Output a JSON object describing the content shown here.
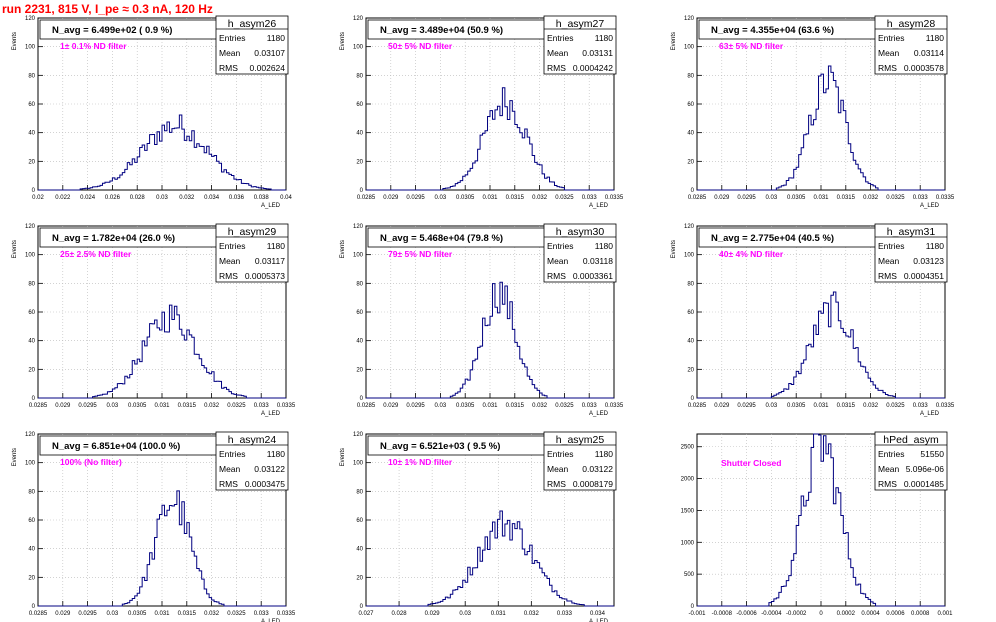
{
  "run_title": "run 2231,   815 V, I_pe ≈ 0.3 nA, 120 Hz",
  "colors": {
    "hist": "#000080",
    "run_title": "#ff0000",
    "annotation": "#ff00ff",
    "grid": "#b8b8b8"
  },
  "chart_data": [
    {
      "type": "histogram",
      "name": "h_asym26",
      "avg_label": "N_avg = 6.499e+02 ( 0.9 %)",
      "annotation": "1± 0.1% ND filter",
      "stats": {
        "entries_label": "Entries",
        "entries": "1180",
        "mean_label": "Mean",
        "mean": "0.03107",
        "rms_label": "RMS",
        "rms": "0.002624"
      },
      "ylabel": "Events",
      "xlabel": "A_LED",
      "xlim": [
        0.02,
        0.04
      ],
      "ylim": [
        0,
        120
      ],
      "xticks": [
        "0.02",
        "0.022",
        "0.024",
        "0.026",
        "0.028",
        "0.03",
        "0.032",
        "0.034",
        "0.036",
        "0.038",
        "0.04"
      ],
      "yticks": [
        "0",
        "20",
        "40",
        "60",
        "80",
        "100",
        "120"
      ],
      "grid": true,
      "stats_box": "top-right",
      "mean": 0.03107,
      "rms": 0.002624,
      "peak": 45
    },
    {
      "type": "histogram",
      "name": "h_asym27",
      "avg_label": "N_avg = 3.489e+04 (50.9 %)",
      "annotation": "50± 5% ND filter",
      "stats": {
        "entries_label": "Entries",
        "entries": "1180",
        "mean_label": "Mean",
        "mean": "0.03131",
        "rms_label": "RMS",
        "rms": "0.0004242"
      },
      "ylabel": "Events",
      "xlabel": "A_LED",
      "xlim": [
        0.0285,
        0.0335
      ],
      "ylim": [
        0,
        120
      ],
      "xticks": [
        "0.0285",
        "0.029",
        "0.0295",
        "0.03",
        "0.0305",
        "0.031",
        "0.0315",
        "0.032",
        "0.0325",
        "0.033",
        "0.0335"
      ],
      "yticks": [
        "0",
        "20",
        "40",
        "60",
        "80",
        "100",
        "120"
      ],
      "grid": true,
      "stats_box": "top-right",
      "mean": 0.03131,
      "rms": 0.0004242,
      "peak": 62
    },
    {
      "type": "histogram",
      "name": "h_asym28",
      "avg_label": "N_avg = 4.355e+04 (63.6 %)",
      "annotation": "63± 5% ND filter",
      "stats": {
        "entries_label": "Entries",
        "entries": "1180",
        "mean_label": "Mean",
        "mean": "0.03114",
        "rms_label": "RMS",
        "rms": "0.0003578"
      },
      "ylabel": "Events",
      "xlabel": "A_LED",
      "xlim": [
        0.0285,
        0.0335
      ],
      "ylim": [
        0,
        120
      ],
      "xticks": [
        "0.0285",
        "0.029",
        "0.0295",
        "0.03",
        "0.0305",
        "0.031",
        "0.0315",
        "0.032",
        "0.0325",
        "0.033",
        "0.0335"
      ],
      "yticks": [
        "0",
        "20",
        "40",
        "60",
        "80",
        "100",
        "120"
      ],
      "grid": true,
      "stats_box": "top-right",
      "mean": 0.03114,
      "rms": 0.0003578,
      "peak": 76
    },
    {
      "type": "histogram",
      "name": "h_asym29",
      "avg_label": "N_avg = 1.782e+04 (26.0 %)",
      "annotation": "25± 2.5% ND filter",
      "stats": {
        "entries_label": "Entries",
        "entries": "1180",
        "mean_label": "Mean",
        "mean": "0.03117",
        "rms_label": "RMS",
        "rms": "0.0005373"
      },
      "ylabel": "Events",
      "xlabel": "A_LED",
      "xlim": [
        0.0285,
        0.0335
      ],
      "ylim": [
        0,
        120
      ],
      "xticks": [
        "0.0285",
        "0.029",
        "0.0295",
        "0.03",
        "0.0305",
        "0.031",
        "0.0315",
        "0.032",
        "0.0325",
        "0.033",
        "0.0335"
      ],
      "yticks": [
        "0",
        "20",
        "40",
        "60",
        "80",
        "100",
        "120"
      ],
      "grid": true,
      "stats_box": "top-right",
      "mean": 0.03117,
      "rms": 0.0005373,
      "peak": 57
    },
    {
      "type": "histogram",
      "name": "h_asym30",
      "avg_label": "N_avg = 5.468e+04 (79.8 %)",
      "annotation": "79± 5% ND filter",
      "stats": {
        "entries_label": "Entries",
        "entries": "1180",
        "mean_label": "Mean",
        "mean": "0.03118",
        "rms_label": "RMS",
        "rms": "0.0003361"
      },
      "ylabel": "Events",
      "xlabel": "A_LED",
      "xlim": [
        0.0285,
        0.0335
      ],
      "ylim": [
        0,
        120
      ],
      "xticks": [
        "0.0285",
        "0.029",
        "0.0295",
        "0.03",
        "0.0305",
        "0.031",
        "0.0315",
        "0.032",
        "0.0325",
        "0.033",
        "0.0335"
      ],
      "yticks": [
        "0",
        "20",
        "40",
        "60",
        "80",
        "100",
        "120"
      ],
      "grid": true,
      "stats_box": "top-right",
      "mean": 0.03118,
      "rms": 0.0003361,
      "peak": 74
    },
    {
      "type": "histogram",
      "name": "h_asym31",
      "avg_label": "N_avg = 2.775e+04 (40.5 %)",
      "annotation": "40± 4% ND filter",
      "stats": {
        "entries_label": "Entries",
        "entries": "1180",
        "mean_label": "Mean",
        "mean": "0.03123",
        "rms_label": "RMS",
        "rms": "0.0004351"
      },
      "ylabel": "Events",
      "xlabel": "A_LED",
      "xlim": [
        0.0285,
        0.0335
      ],
      "ylim": [
        0,
        120
      ],
      "xticks": [
        "0.0285",
        "0.029",
        "0.0295",
        "0.03",
        "0.0305",
        "0.031",
        "0.0315",
        "0.032",
        "0.0325",
        "0.033",
        "0.0335"
      ],
      "yticks": [
        "0",
        "20",
        "40",
        "60",
        "80",
        "100",
        "120"
      ],
      "grid": true,
      "stats_box": "top-right",
      "mean": 0.03123,
      "rms": 0.0004351,
      "peak": 62
    },
    {
      "type": "histogram",
      "name": "h_asym24",
      "avg_label": "N_avg = 6.851e+04 (100.0 %)",
      "annotation": "100% (No filter)",
      "stats": {
        "entries_label": "Entries",
        "entries": "1180",
        "mean_label": "Mean",
        "mean": "0.03122",
        "rms_label": "RMS",
        "rms": "0.0003475"
      },
      "ylabel": "Events",
      "xlabel": "A_LED",
      "xlim": [
        0.0285,
        0.0335
      ],
      "ylim": [
        0,
        120
      ],
      "xticks": [
        "0.0285",
        "0.029",
        "0.0295",
        "0.03",
        "0.0305",
        "0.031",
        "0.0315",
        "0.032",
        "0.0325",
        "0.033",
        "0.0335"
      ],
      "yticks": [
        "0",
        "20",
        "40",
        "60",
        "80",
        "100",
        "120"
      ],
      "grid": true,
      "stats_box": "top-right",
      "mean": 0.03122,
      "rms": 0.0003475,
      "peak": 74
    },
    {
      "type": "histogram",
      "name": "h_asym25",
      "avg_label": "N_avg = 6.521e+03 ( 9.5 %)",
      "annotation": "10± 1% ND filter",
      "stats": {
        "entries_label": "Entries",
        "entries": "1180",
        "mean_label": "Mean",
        "mean": "0.03122",
        "rms_label": "RMS",
        "rms": "0.0008179"
      },
      "ylabel": "Events",
      "xlabel": "A_LED",
      "xlim": [
        0.027,
        0.0345
      ],
      "ylim": [
        0,
        120
      ],
      "xticks": [
        "0.027",
        "0.028",
        "0.029",
        "0.03",
        "0.031",
        "0.032",
        "0.033",
        "0.034"
      ],
      "yticks": [
        "0",
        "20",
        "40",
        "60",
        "80",
        "100",
        "120"
      ],
      "grid": true,
      "stats_box": "top-right",
      "mean": 0.03122,
      "rms": 0.0008179,
      "peak": 58
    },
    {
      "type": "histogram",
      "name": "hPed_asym",
      "avg_label": "",
      "annotation": "Shutter Closed",
      "stats": {
        "entries_label": "Entries",
        "entries": "51550",
        "mean_label": "Mean",
        "mean": "5.096e-06",
        "rms_label": "RMS",
        "rms": "0.0001485"
      },
      "ylabel": "",
      "xlabel": "",
      "xlim": [
        -0.001,
        0.001
      ],
      "ylim": [
        0,
        2700
      ],
      "xticks": [
        "-0.001",
        "-0.0008",
        "-0.0006",
        "-0.0004",
        "-0.0002",
        "0",
        "0.0002",
        "0.0004",
        "0.0006",
        "0.0008",
        "0.001"
      ],
      "yticks": [
        "0",
        "500",
        "1000",
        "1500",
        "2000",
        "2500"
      ],
      "grid": true,
      "stats_box": "top-right",
      "mean": 5.096e-06,
      "rms": 0.0001485,
      "peak": 2550
    }
  ]
}
